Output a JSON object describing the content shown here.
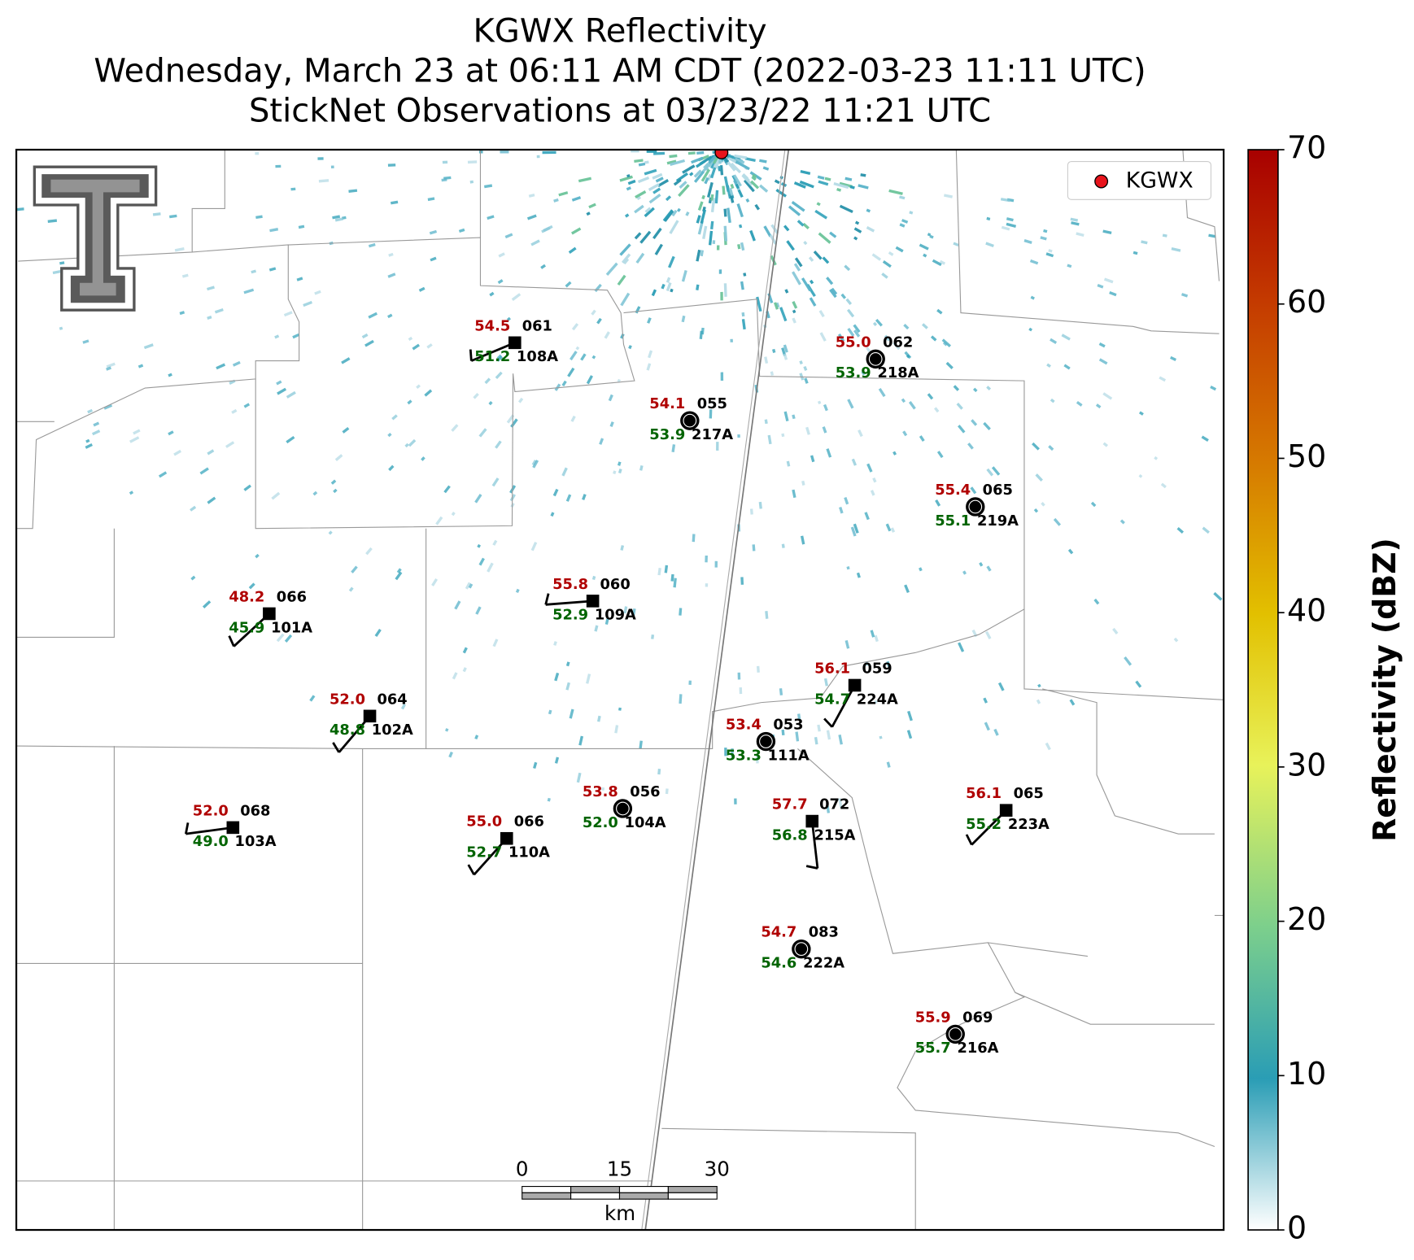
{
  "title": [
    "KGWX Reflectivity",
    "Wednesday, March 23 at 06:11 AM CDT (2022-03-23 11:11 UTC)",
    "StickNet Observations at 03/23/22 11:21 UTC"
  ],
  "legend": {
    "label": "KGWX",
    "color": "#e8141c"
  },
  "colorbar": {
    "label": "Reflectivity (dBZ)",
    "lim": [
      0,
      70
    ],
    "ticks": [
      0,
      10,
      20,
      30,
      40,
      50,
      60,
      70
    ]
  },
  "scalebar": {
    "ticks": [
      0,
      15,
      30
    ],
    "unit": "km"
  },
  "stations": [
    {
      "id": "108A",
      "temp": "54.5",
      "dew": "51.2",
      "pres": "061"
    },
    {
      "id": "218A",
      "temp": "55.0",
      "dew": "53.9",
      "pres": "062"
    },
    {
      "id": "217A",
      "temp": "54.1",
      "dew": "53.9",
      "pres": "055"
    },
    {
      "id": "219A",
      "temp": "55.4",
      "dew": "55.1",
      "pres": "065"
    },
    {
      "id": "109A",
      "temp": "55.8",
      "dew": "52.9",
      "pres": "060"
    },
    {
      "id": "101A",
      "temp": "48.2",
      "dew": "45.9",
      "pres": "066"
    },
    {
      "id": "224A",
      "temp": "56.1",
      "dew": "54.7",
      "pres": "059"
    },
    {
      "id": "111A",
      "temp": "53.4",
      "dew": "53.3",
      "pres": "053"
    },
    {
      "id": "102A",
      "temp": "52.0",
      "dew": "48.8",
      "pres": "064"
    },
    {
      "id": "104A",
      "temp": "53.8",
      "dew": "52.0",
      "pres": "056"
    },
    {
      "id": "215A",
      "temp": "57.7",
      "dew": "56.8",
      "pres": "072"
    },
    {
      "id": "223A",
      "temp": "56.1",
      "dew": "55.2",
      "pres": "065"
    },
    {
      "id": "103A",
      "temp": "52.0",
      "dew": "49.0",
      "pres": "068"
    },
    {
      "id": "110A",
      "temp": "55.0",
      "dew": "52.7",
      "pres": "066"
    },
    {
      "id": "222A",
      "temp": "54.7",
      "dew": "54.6",
      "pres": "083"
    },
    {
      "id": "216A",
      "temp": "55.9",
      "dew": "55.7",
      "pres": "069"
    }
  ]
}
